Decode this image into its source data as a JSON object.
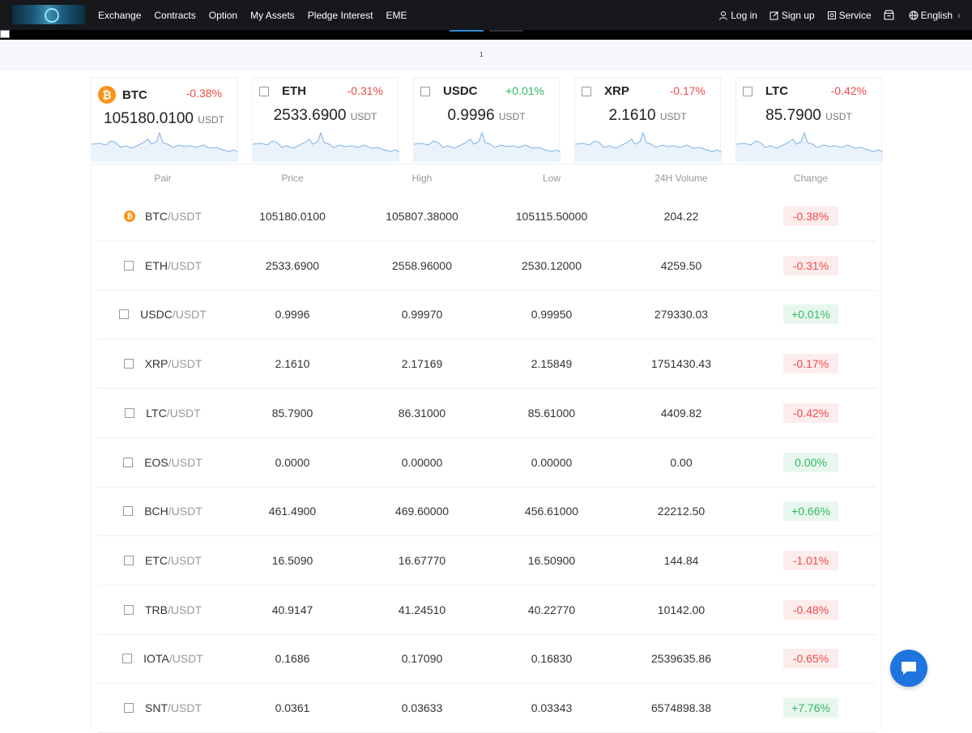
{
  "header": {
    "nav": [
      "Exchange",
      "Contracts",
      "Option",
      "My Assets",
      "Pledge Interest",
      "EME"
    ],
    "login": "Log in",
    "signup": "Sign up",
    "service": "Service",
    "language": "English",
    "language_caret": "‹"
  },
  "banner": {
    "page_indicator": "1"
  },
  "cards": [
    {
      "name": "BTC",
      "pct": "-0.38%",
      "price": "105180.0100",
      "unit": "USDT",
      "dir": "down",
      "icon": "bitcoin-icon"
    },
    {
      "name": "ETH",
      "pct": "-0.31%",
      "price": "2533.6900",
      "unit": "USDT",
      "dir": "down",
      "icon": "broken-image-icon"
    },
    {
      "name": "USDC",
      "pct": "+0.01%",
      "price": "0.9996",
      "unit": "USDT",
      "dir": "up",
      "icon": "broken-image-icon"
    },
    {
      "name": "XRP",
      "pct": "-0.17%",
      "price": "2.1610",
      "unit": "USDT",
      "dir": "down",
      "icon": "broken-image-icon"
    },
    {
      "name": "LTC",
      "pct": "-0.42%",
      "price": "85.7900",
      "unit": "USDT",
      "dir": "down",
      "icon": "broken-image-icon"
    }
  ],
  "table": {
    "headers": [
      "Pair",
      "Price",
      "High",
      "Low",
      "24H Volume",
      "Change"
    ],
    "rows": [
      {
        "base": "BTC",
        "quote": "/USDT",
        "price": "105180.0100",
        "high": "105807.38000",
        "low": "105115.50000",
        "volume": "204.22",
        "change": "-0.38%",
        "dir": "down"
      },
      {
        "base": "ETH",
        "quote": "/USDT",
        "price": "2533.6900",
        "high": "2558.96000",
        "low": "2530.12000",
        "volume": "4259.50",
        "change": "-0.31%",
        "dir": "down"
      },
      {
        "base": "USDC",
        "quote": "/USDT",
        "price": "0.9996",
        "high": "0.99970",
        "low": "0.99950",
        "volume": "279330.03",
        "change": "+0.01%",
        "dir": "up"
      },
      {
        "base": "XRP",
        "quote": "/USDT",
        "price": "2.1610",
        "high": "2.17169",
        "low": "2.15849",
        "volume": "1751430.43",
        "change": "-0.17%",
        "dir": "down"
      },
      {
        "base": "LTC",
        "quote": "/USDT",
        "price": "85.7900",
        "high": "86.31000",
        "low": "85.61000",
        "volume": "4409.82",
        "change": "-0.42%",
        "dir": "down"
      },
      {
        "base": "EOS",
        "quote": "/USDT",
        "price": "0.0000",
        "high": "0.00000",
        "low": "0.00000",
        "volume": "0.00",
        "change": "0.00%",
        "dir": "up"
      },
      {
        "base": "BCH",
        "quote": "/USDT",
        "price": "461.4900",
        "high": "469.60000",
        "low": "456.61000",
        "volume": "22212.50",
        "change": "+0.66%",
        "dir": "up"
      },
      {
        "base": "ETC",
        "quote": "/USDT",
        "price": "16.5090",
        "high": "16.67770",
        "low": "16.50900",
        "volume": "144.84",
        "change": "-1.01%",
        "dir": "down"
      },
      {
        "base": "TRB",
        "quote": "/USDT",
        "price": "40.9147",
        "high": "41.24510",
        "low": "40.22770",
        "volume": "10142.00",
        "change": "-0.48%",
        "dir": "down"
      },
      {
        "base": "IOTA",
        "quote": "/USDT",
        "price": "0.1686",
        "high": "0.17090",
        "low": "0.16830",
        "volume": "2539635.86",
        "change": "-0.65%",
        "dir": "down"
      },
      {
        "base": "SNT",
        "quote": "/USDT",
        "price": "0.0361",
        "high": "0.03633",
        "low": "0.03343",
        "volume": "6574898.38",
        "change": "+7.76%",
        "dir": "up"
      }
    ]
  },
  "colors": {
    "up": "#33b862",
    "down": "#f04a4a",
    "spark": "#7fb0e6",
    "topbar": "#16181c",
    "chat": "#1f74e0"
  }
}
